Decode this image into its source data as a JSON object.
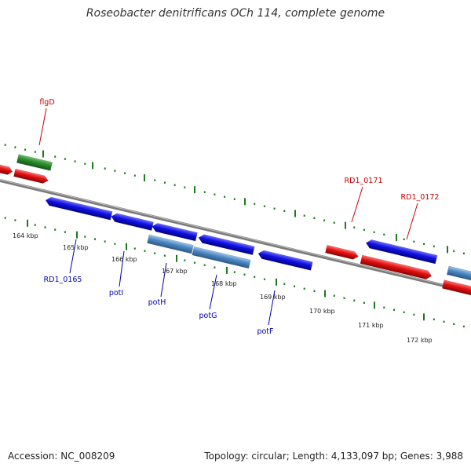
{
  "title": "Roseobacter denitrificans OCh 114, complete genome",
  "footer": {
    "accession": "Accession: NC_008209",
    "topology": "Topology: circular; Length: 4,133,097 bp; Genes: 3,988"
  },
  "colors": {
    "forward_gene": "#e01010",
    "reverse_gene": "#1010e0",
    "reverse_operon_gene": "#4a86c0",
    "other_feature": "#2a8a2a",
    "backbone": "#7a7a7a",
    "tick": "#1a7a1a",
    "forward_label": "#cc0000",
    "reverse_label": "#0000aa"
  },
  "scale_labels": [
    "164 kbp",
    "165 kbp",
    "166 kbp",
    "167 kbp",
    "168 kbp",
    "169 kbp",
    "170 kbp",
    "171 kbp",
    "172 kbp"
  ],
  "gene_labels": [
    {
      "text": "flgD",
      "strand": "forward"
    },
    {
      "text": "RD1_0171",
      "strand": "forward"
    },
    {
      "text": "RD1_0172",
      "strand": "forward"
    },
    {
      "text": "RD1_0165",
      "strand": "reverse"
    },
    {
      "text": "potI",
      "strand": "reverse"
    },
    {
      "text": "potH",
      "strand": "reverse"
    },
    {
      "text": "potG",
      "strand": "reverse"
    },
    {
      "text": "potF",
      "strand": "reverse"
    }
  ]
}
